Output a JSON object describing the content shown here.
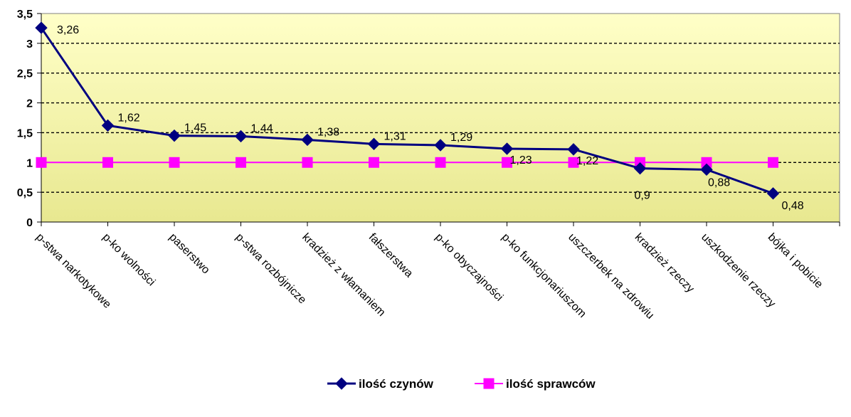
{
  "chart_data": {
    "type": "line",
    "title": "",
    "xlabel": "",
    "ylabel": "",
    "ylim": [
      0,
      3.5
    ],
    "y_ticks": [
      "0",
      "0,5",
      "1",
      "1,5",
      "2",
      "2,5",
      "3",
      "3,5"
    ],
    "y_tick_values": [
      0,
      0.5,
      1,
      1.5,
      2,
      2.5,
      3,
      3.5
    ],
    "grid": "horizontal dashed",
    "legend_position": "bottom",
    "background_gradient": [
      "#ffffc8",
      "#e8e890"
    ],
    "categories": [
      "p-stwa narkotykowe",
      "p-ko wolności",
      "paserstwo",
      "p-stwa rozbójnicze",
      "kradzież z włamaniem",
      "fałszerstwa",
      "p-ko obyczajności",
      "p-ko funkcjonariuszom",
      "uszczerbek na zdrowiu",
      "kradzież rzeczy",
      "uszkodzenie rzeczy",
      "bójka i pobicie"
    ],
    "series": [
      {
        "name": "ilość czynów",
        "color": "#000080",
        "marker": "diamond",
        "values": [
          3.26,
          1.62,
          1.45,
          1.44,
          1.38,
          1.31,
          1.29,
          1.23,
          1.22,
          0.9,
          0.88,
          0.48
        ],
        "labels": [
          "3,26",
          "1,62",
          "1,45",
          "1,44",
          "1,38",
          "1,31",
          "1,29",
          "1,23",
          "1,22",
          "0,9",
          "0,88",
          "0,48"
        ]
      },
      {
        "name": "ilość sprawców",
        "color": "#ff00ff",
        "marker": "square",
        "values": [
          1,
          1,
          1,
          1,
          1,
          1,
          1,
          1,
          1,
          1,
          1,
          1
        ]
      }
    ]
  }
}
